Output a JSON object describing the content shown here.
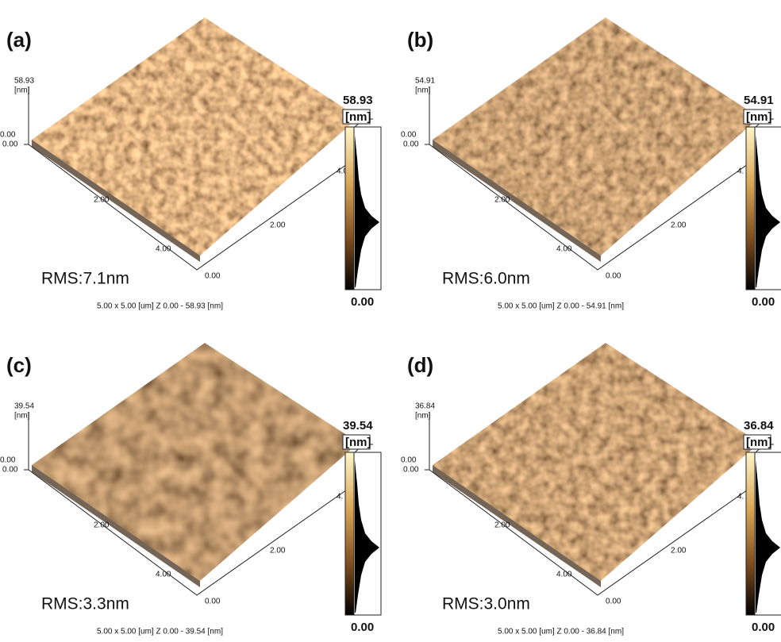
{
  "panels": [
    {
      "label": "(a)",
      "z_max": "58.93",
      "z_unit": "[nm]",
      "z_min": "0.00",
      "origin": "0.00",
      "ticks_left": [
        "2.00",
        "4.00"
      ],
      "ticks_right": [
        "0.00",
        "2.00",
        "4.0"
      ],
      "colorbar_max": "58.93",
      "colorbar_unit": "[nm]",
      "colorbar_min": "0.00",
      "rms": "RMS:7.1nm",
      "footer": "5.00 x 5.00 [um]    Z  0.00  -  58.93 [nm]"
    },
    {
      "label": "(b)",
      "z_max": "54.91",
      "z_unit": "[nm]",
      "z_min": "0.00",
      "origin": "0.00",
      "ticks_left": [
        "2.00",
        "4.00"
      ],
      "ticks_right": [
        "0.00",
        "2.00",
        "4."
      ],
      "colorbar_max": "54.91",
      "colorbar_unit": "[nm]",
      "colorbar_min": "0.00",
      "rms": "RMS:6.0nm",
      "footer": "5.00 x 5.00 [um]    Z  0.00  -  54.91 [nm]"
    },
    {
      "label": "(c)",
      "z_max": "39.54",
      "z_unit": "[nm]",
      "z_min": "0.00",
      "origin": "0.00",
      "ticks_left": [
        "2.00",
        "4.00"
      ],
      "ticks_right": [
        "0.00",
        "2.00",
        "4."
      ],
      "colorbar_max": "39.54",
      "colorbar_unit": "[nm]",
      "colorbar_min": "0.00",
      "rms": "RMS:3.3nm",
      "footer": "5.00 x 5.00 [um]    Z  0.00  -  39.54 [nm]"
    },
    {
      "label": "(d)",
      "z_max": "36.84",
      "z_unit": "[nm]",
      "z_min": "0.00",
      "origin": "0.00",
      "ticks_left": [
        "2.00",
        "4.00"
      ],
      "ticks_right": [
        "0.00",
        "2.00",
        "4."
      ],
      "colorbar_max": "36.84",
      "colorbar_unit": "[nm]",
      "colorbar_min": "0.00",
      "rms": "RMS:3.0nm",
      "footer": "5.00 x 5.00 [um]    Z  0.00  -  36.84 [nm]"
    }
  ]
}
